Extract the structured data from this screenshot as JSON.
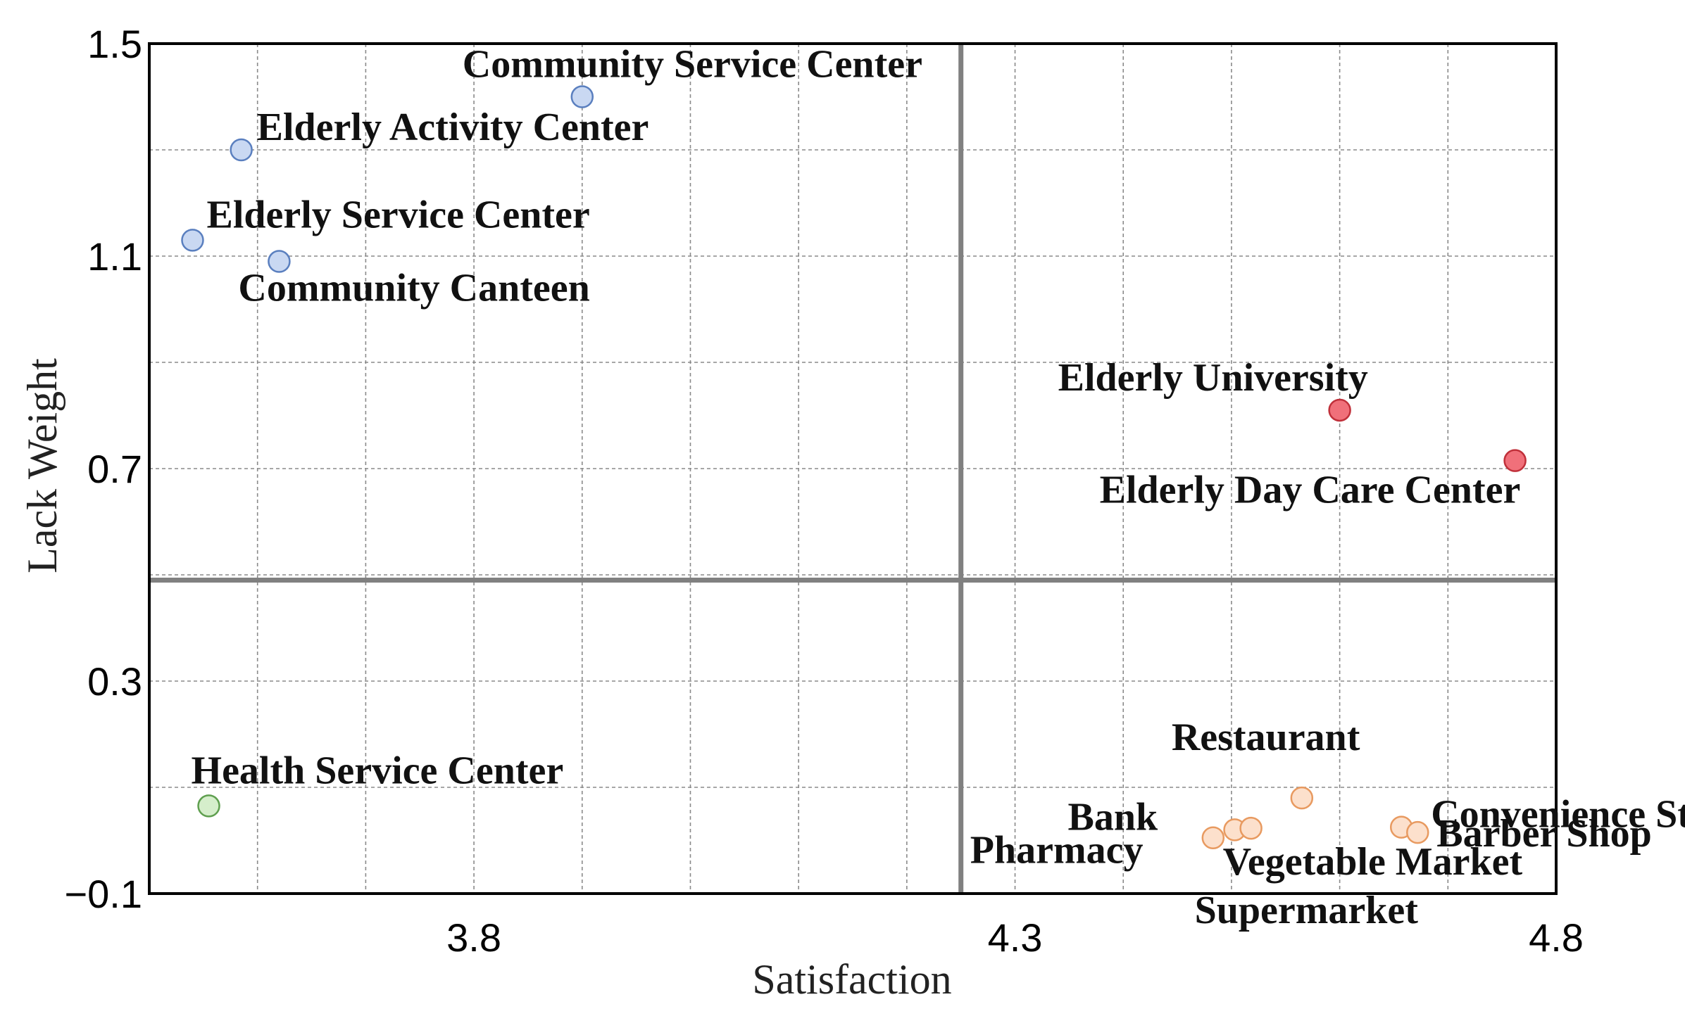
{
  "chart_data": {
    "type": "scatter",
    "title": "",
    "xlabel": "Satisfaction",
    "ylabel": "Lack Weight",
    "xlim": [
      3.5,
      4.8
    ],
    "ylim": [
      -0.1,
      1.5
    ],
    "x_tick_labels": [
      "3.8",
      "4.3",
      "4.8"
    ],
    "y_tick_labels": [
      "1.5",
      "1.1",
      "0.7",
      "0.3",
      "−0.1"
    ],
    "grid": true,
    "threshold_x": 4.25,
    "threshold_y": 0.49,
    "colors": {
      "blue_fill": "#c9d8f2",
      "blue_stroke": "#5a7fbf",
      "red_fill": "#f0707a",
      "red_stroke": "#c0303a",
      "green_fill": "#d5eecb",
      "green_stroke": "#5f9f4f",
      "orange_fill": "#fce0cc",
      "orange_stroke": "#e89a60"
    },
    "points": [
      {
        "label": "Community Service Center",
        "x": 3.9,
        "y": 1.4,
        "group": "blue"
      },
      {
        "label": "Elderly Activity Center",
        "x": 3.585,
        "y": 1.3,
        "group": "blue"
      },
      {
        "label": "Elderly Service Center",
        "x": 3.54,
        "y": 1.13,
        "group": "blue"
      },
      {
        "label": "Community Canteen",
        "x": 3.62,
        "y": 1.09,
        "group": "blue"
      },
      {
        "label": "Elderly University",
        "x": 4.6,
        "y": 0.81,
        "group": "red"
      },
      {
        "label": "Elderly Day Care Center",
        "x": 4.762,
        "y": 0.715,
        "group": "red"
      },
      {
        "label": "Health Service Center",
        "x": 3.555,
        "y": 0.065,
        "group": "green"
      },
      {
        "label": "Restaurant",
        "x": 4.565,
        "y": 0.08,
        "group": "orange"
      },
      {
        "label": "Bank",
        "x": 4.503,
        "y": 0.02,
        "group": "orange"
      },
      {
        "label": "Convenience Store",
        "x": 4.657,
        "y": 0.025,
        "group": "orange"
      },
      {
        "label": "Pharmacy",
        "x": 4.483,
        "y": 0.005,
        "group": "orange"
      },
      {
        "label": "Barber Shop",
        "x": 4.672,
        "y": 0.015,
        "group": "orange"
      },
      {
        "label": "Vegetable Market",
        "x": 4.518,
        "y": 0.023,
        "group": "orange"
      },
      {
        "label": "Supermarket",
        "x": 4.518,
        "y": 0.023,
        "group": "orange",
        "marker": false
      }
    ]
  }
}
